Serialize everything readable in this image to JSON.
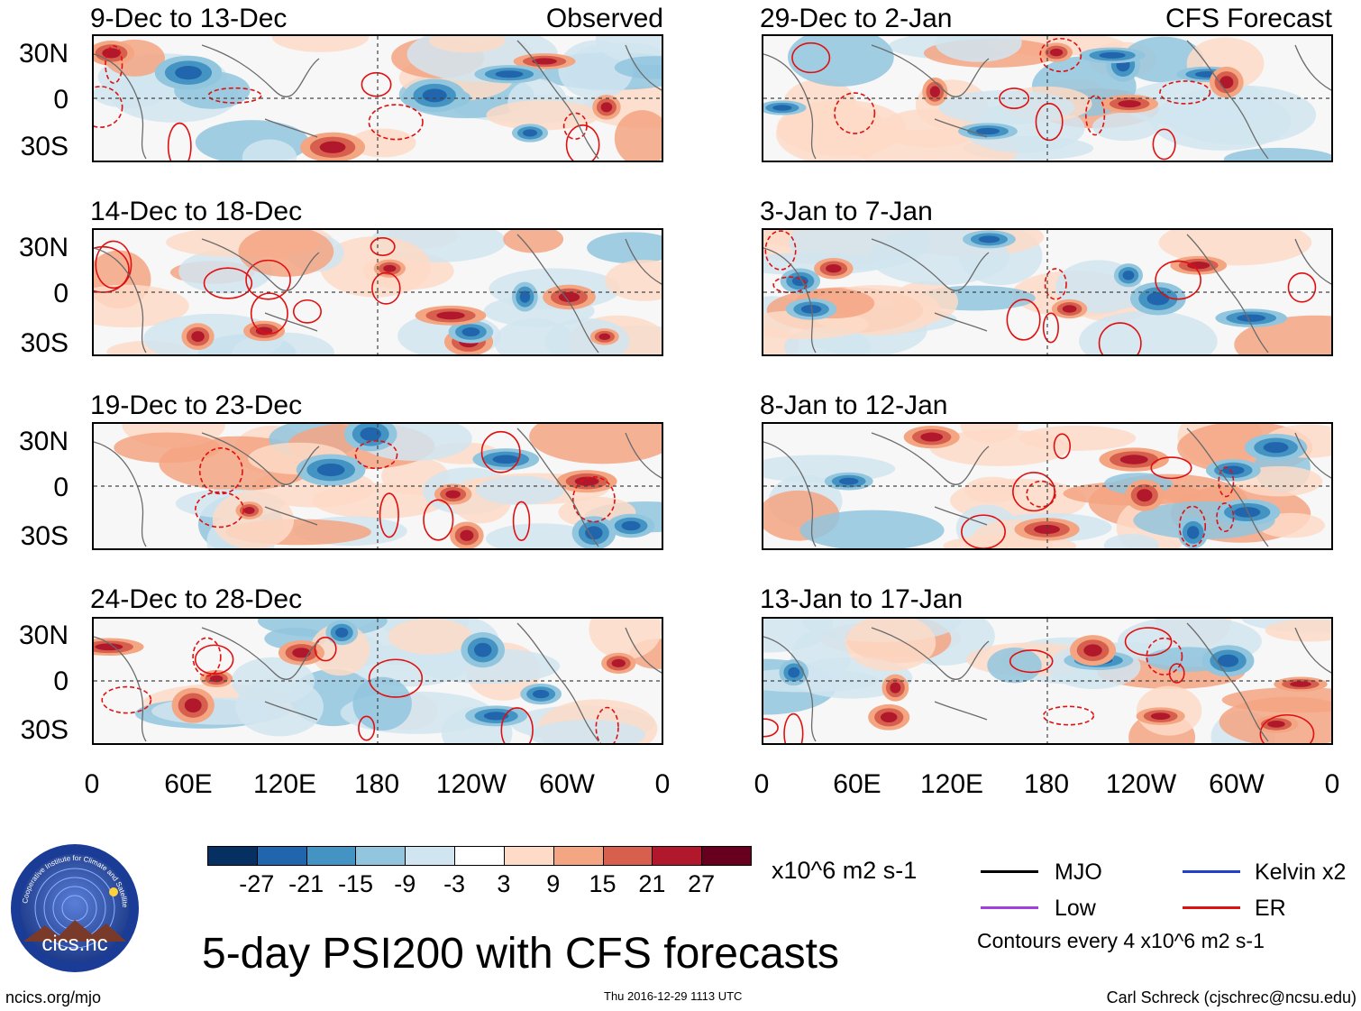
{
  "panels": [
    {
      "id": "p1",
      "title": "9-Dec to 13-Dec",
      "tag": "Observed"
    },
    {
      "id": "p2",
      "title": "29-Dec to 2-Jan",
      "tag": "CFS Forecast"
    },
    {
      "id": "p3",
      "title": "14-Dec to 18-Dec",
      "tag": ""
    },
    {
      "id": "p4",
      "title": "3-Jan to 7-Jan",
      "tag": ""
    },
    {
      "id": "p5",
      "title": "19-Dec to 23-Dec",
      "tag": ""
    },
    {
      "id": "p6",
      "title": "8-Jan to 12-Jan",
      "tag": ""
    },
    {
      "id": "p7",
      "title": "24-Dec to 28-Dec",
      "tag": ""
    },
    {
      "id": "p8",
      "title": "13-Jan to 17-Jan",
      "tag": ""
    }
  ],
  "lat_labels": [
    "30N",
    "0",
    "30S"
  ],
  "lon_labels": [
    "0",
    "60E",
    "120E",
    "180",
    "120W",
    "60W",
    "0"
  ],
  "colorbar": {
    "ticks": [
      "-27",
      "-21",
      "-15",
      "-9",
      "-3",
      "3",
      "9",
      "15",
      "21",
      "27"
    ],
    "colors": [
      "#053061",
      "#2166ac",
      "#4393c3",
      "#92c5de",
      "#d1e5f0",
      "#ffffff",
      "#fddbc7",
      "#f4a582",
      "#d6604d",
      "#b2182b",
      "#67001f"
    ],
    "units": "x10^6 m2 s-1"
  },
  "legend": {
    "items": [
      {
        "label": "MJO",
        "color": "#000000"
      },
      {
        "label": "Kelvin x2",
        "color": "#2040d0"
      },
      {
        "label": "Low",
        "color": "#a040e0"
      },
      {
        "label": "ER",
        "color": "#e01010"
      }
    ],
    "note": "Contours every 4 x10^6 m2 s-1"
  },
  "title": "5-day PSI200 with CFS forecasts",
  "footer": {
    "left": "ncics.org/mjo",
    "center": "Thu 2016-12-29 1113 UTC",
    "right": "Carl Schreck (cjschrec@ncsu.edu)"
  },
  "logo": {
    "text": "cics.nc",
    "ring": "Cooperative Institute for Climate and Satellites"
  }
}
